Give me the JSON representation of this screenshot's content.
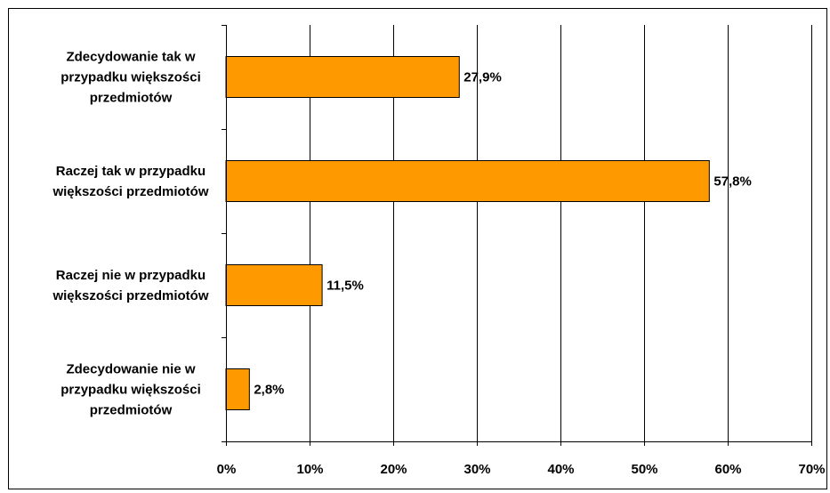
{
  "chart_data": {
    "type": "bar",
    "orientation": "horizontal",
    "categories": [
      [
        "Zdecydowanie tak w",
        "przypadku większości",
        "przedmiotów"
      ],
      [
        "Raczej tak w przypadku",
        "większości przedmiotów"
      ],
      [
        "Raczej nie w przypadku",
        "większości przedmiotów"
      ],
      [
        "Zdecydowanie nie w",
        "przypadku większości",
        "przedmiotów"
      ]
    ],
    "values": [
      27.9,
      57.8,
      11.5,
      2.8
    ],
    "data_labels": [
      "27,9%",
      "57,8%",
      "11,5%",
      "2,8%"
    ],
    "xlim": [
      0,
      70
    ],
    "xticks": [
      0,
      10,
      20,
      30,
      40,
      50,
      60,
      70
    ],
    "xtick_labels": [
      "0%",
      "10%",
      "20%",
      "30%",
      "40%",
      "50%",
      "60%",
      "70%"
    ],
    "title": "",
    "xlabel": "",
    "ylabel": "",
    "grid": "vertical",
    "legend": "none",
    "colors": {
      "bar_fill": "#FF9900",
      "bar_stroke": "#000000",
      "grid": "#000000",
      "axis": "#000000"
    }
  }
}
